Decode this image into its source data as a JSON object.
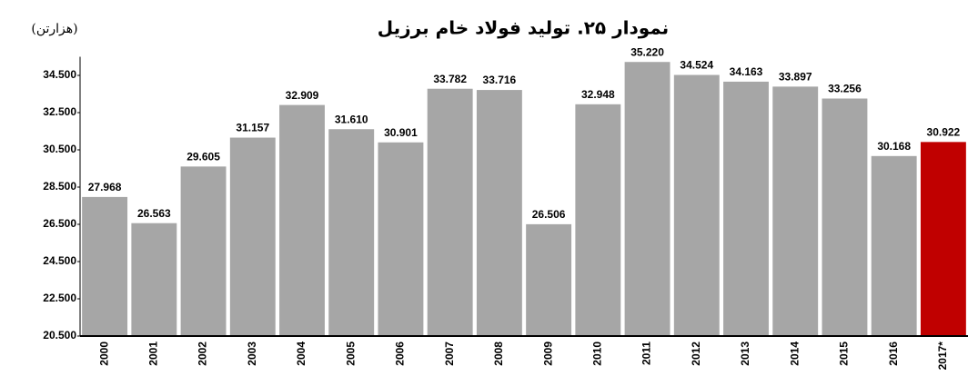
{
  "chart_data": {
    "type": "bar",
    "title": "نمودار ۲۵. تولید فولاد خام برزیل",
    "y_label": "(هزارتن)",
    "categories": [
      "2000",
      "2001",
      "2002",
      "2003",
      "2004",
      "2005",
      "2006",
      "2007",
      "2008",
      "2009",
      "2010",
      "2011",
      "2012",
      "2013",
      "2014",
      "2015",
      "2016",
      "2017*"
    ],
    "values": [
      27968,
      26563,
      29605,
      31157,
      32909,
      31610,
      30901,
      33782,
      33716,
      26506,
      32948,
      35220,
      34524,
      34163,
      33897,
      33256,
      30168,
      30922
    ],
    "value_labels": [
      "27.968",
      "26.563",
      "29.605",
      "31.157",
      "32.909",
      "31.610",
      "30.901",
      "33.782",
      "33.716",
      "26.506",
      "32.948",
      "35.220",
      "34.524",
      "34.163",
      "33.897",
      "33.256",
      "30.168",
      "30.922"
    ],
    "colors": [
      "#a6a6a6",
      "#a6a6a6",
      "#a6a6a6",
      "#a6a6a6",
      "#a6a6a6",
      "#a6a6a6",
      "#a6a6a6",
      "#a6a6a6",
      "#a6a6a6",
      "#a6a6a6",
      "#a6a6a6",
      "#a6a6a6",
      "#a6a6a6",
      "#a6a6a6",
      "#a6a6a6",
      "#a6a6a6",
      "#a6a6a6",
      "#c00000"
    ],
    "ylim": [
      20500,
      35500
    ],
    "yticks": [
      {
        "value": 20500,
        "label": "20.500"
      },
      {
        "value": 22500,
        "label": "22.500"
      },
      {
        "value": 24500,
        "label": "24.500"
      },
      {
        "value": 26500,
        "label": "26.500"
      },
      {
        "value": 28500,
        "label": "28.500"
      },
      {
        "value": 30500,
        "label": "30.500"
      },
      {
        "value": 32500,
        "label": "32.500"
      },
      {
        "value": 34500,
        "label": "34.500"
      }
    ],
    "grid": false
  }
}
